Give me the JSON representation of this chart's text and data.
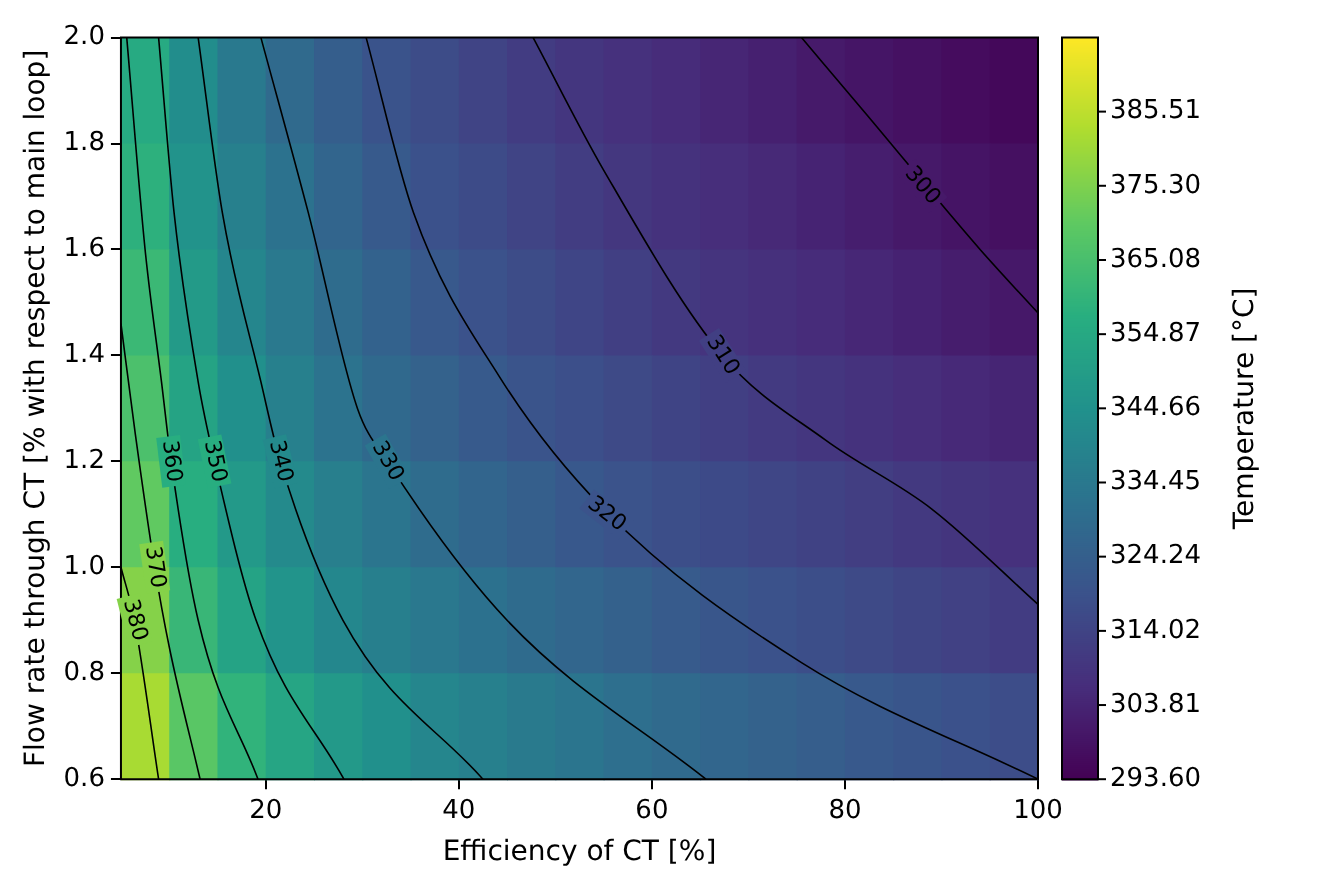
{
  "chart_data": {
    "type": "heatmap",
    "xlabel": "Efficiency of CT [%]",
    "ylabel": "Flow rate through CT [% with respect to main loop]",
    "clabel": "Temperature [°C]",
    "x": [
      7.5,
      12.5,
      17.5,
      22.5,
      27.5,
      32.5,
      37.5,
      42.5,
      47.5,
      52.5,
      57.5,
      62.5,
      67.5,
      72.5,
      77.5,
      82.5,
      87.5,
      92.5,
      97.5
    ],
    "xlim": [
      5,
      100
    ],
    "xticks": [
      20,
      40,
      60,
      80,
      100
    ],
    "ylim": [
      0.6,
      2.0
    ],
    "yticks": [
      0.6,
      0.8,
      {
        "value": 1,
        "label": "1.0"
      },
      1.2,
      1.4,
      1.6,
      1.8,
      {
        "value": 2,
        "label": "2.0"
      }
    ],
    "clim": [
      293.6,
      395.7
    ],
    "cticks": [
      {
        "value": 293.6,
        "label": "293.60"
      },
      303.81,
      314.02,
      324.24,
      334.45,
      344.66,
      354.87,
      365.08,
      {
        "value": 375.3,
        "label": "375.30"
      },
      385.51
    ],
    "cells": [
      [
        355.8,
        343.0,
        334.9,
        328.6,
        324.0,
        319.7,
        317.0,
        314.3,
        311.7,
        309.4,
        307.7,
        306.0,
        304.3,
        302.6,
        300.9,
        299.4,
        298.1,
        296.9,
        295.6
      ],
      [
        358.5,
        345.7,
        337.5,
        331.7,
        326.8,
        322.3,
        318.9,
        316.6,
        314.3,
        312.0,
        309.8,
        308.2,
        306.7,
        305.1,
        303.6,
        302.0,
        300.5,
        299.2,
        298.0
      ],
      [
        362.0,
        348.8,
        340.2,
        334.6,
        329.4,
        325.7,
        322.0,
        319.0,
        316.9,
        314.8,
        312.7,
        310.6,
        308.9,
        307.5,
        306.1,
        304.7,
        303.3,
        301.8,
        300.4
      ],
      [
        365.9,
        352.7,
        344.1,
        337.5,
        332.2,
        328.3,
        325.4,
        322.5,
        319.8,
        318.0,
        316.2,
        314.4,
        312.6,
        310.8,
        309.3,
        308.0,
        306.6,
        305.3,
        304.0
      ],
      [
        370.5,
        357.2,
        348.2,
        341.6,
        337.1,
        333.2,
        329.6,
        326.9,
        324.2,
        321.6,
        319.4,
        317.9,
        316.5,
        315.0,
        313.5,
        312.1,
        310.6,
        309.1,
        307.6
      ],
      [
        376.5,
        361.4,
        352.5,
        346.1,
        340.6,
        337.4,
        334.4,
        331.5,
        329.0,
        327.0,
        325.0,
        322.9,
        320.9,
        319.2,
        317.7,
        316.2,
        314.7,
        313.2,
        311.7
      ],
      [
        382.1,
        368.9,
        359.6,
        353.3,
        348.1,
        344.1,
        340.2,
        337.7,
        335.3,
        333.0,
        330.6,
        328.7,
        327.0,
        325.4,
        323.8,
        322.1,
        320.5,
        318.9,
        317.4
      ]
    ],
    "series": [
      {
        "type": "line",
        "color": "#000000",
        "x": [
          75.5,
          82,
          94,
          100
        ],
        "values": [
          2.0,
          1.86,
          1.6,
          1.48
        ]
      },
      {
        "type": "line",
        "color": "#000000",
        "x": [
          47.7,
          55,
          67.3,
          78,
          89,
          100
        ],
        "values": [
          2.0,
          1.75,
          1.4,
          1.24,
          1.11,
          0.93
        ]
      },
      {
        "type": "line",
        "color": "#000000",
        "x": [
          30.4,
          35.3,
          44.2,
          55,
          75.5,
          100
        ],
        "values": [
          2.0,
          1.67,
          1.36,
          1.11,
          0.82,
          0.6
        ]
      },
      {
        "type": "line",
        "color": "#000000",
        "x": [
          19.5,
          24.4,
          29.5,
          32.6,
          45,
          65.6
        ],
        "values": [
          2.0,
          1.67,
          1.3,
          1.2,
          0.9,
          0.6
        ]
      },
      {
        "type": "line",
        "color": "#000000",
        "x": [
          13.0,
          15.5,
          19.5,
          21.5,
          28,
          42.5
        ],
        "values": [
          2.0,
          1.67,
          1.35,
          1.2,
          0.9,
          0.6
        ]
      },
      {
        "type": "line",
        "color": "#000000",
        "x": [
          8.9,
          10.5,
          13,
          14.7,
          19,
          28.1
        ],
        "values": [
          2.0,
          1.67,
          1.35,
          1.2,
          0.9,
          0.6
        ]
      },
      {
        "type": "line",
        "color": "#000000",
        "x": [
          5.6,
          7.5,
          9.2,
          10.2,
          13,
          19.2
        ],
        "values": [
          2.0,
          1.6,
          1.35,
          1.2,
          0.9,
          0.6
        ]
      },
      {
        "type": "line",
        "color": "#000000",
        "x": [
          5,
          6.5,
          8.5,
          10,
          13.2
        ],
        "values": [
          1.46,
          1.25,
          1.0,
          0.85,
          0.6
        ]
      },
      {
        "type": "line",
        "color": "#000000",
        "x": [
          5,
          6.4,
          8.9
        ],
        "values": [
          1.0,
          0.9,
          0.6
        ]
      }
    ],
    "annotations": [
      {
        "text": "300",
        "x": 88,
        "y": 1.72
      },
      {
        "text": "310",
        "x": 67.3,
        "y": 1.4
      },
      {
        "text": "320",
        "x": 55.3,
        "y": 1.1
      },
      {
        "text": "330",
        "x": 32.6,
        "y": 1.2
      },
      {
        "text": "340",
        "x": 21.5,
        "y": 1.2
      },
      {
        "text": "350",
        "x": 14.7,
        "y": 1.2
      },
      {
        "text": "360",
        "x": 10.2,
        "y": 1.2
      },
      {
        "text": "370",
        "x": 8.5,
        "y": 1.0
      },
      {
        "text": "380",
        "x": 6.4,
        "y": 0.9
      }
    ]
  }
}
